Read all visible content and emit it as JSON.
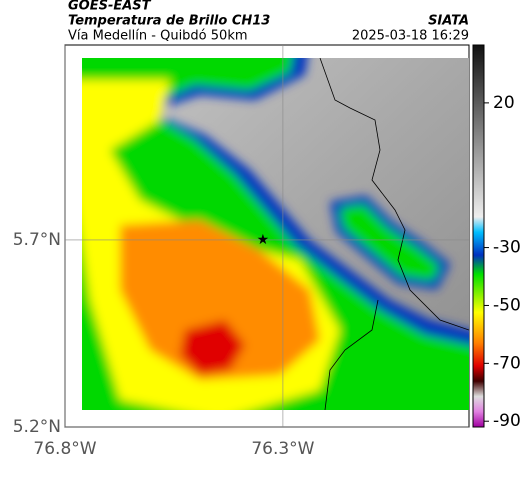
{
  "header": {
    "title": "GOES-EAST",
    "subtitle": "Temperatura de Brillo CH13",
    "route": "Vía Medellín - Quibdó 50km",
    "source": "SIATA",
    "datetime": "2025-03-18 16:29"
  },
  "map": {
    "xlim": [
      -76.8,
      -75.873
    ],
    "ylim": [
      5.2,
      6.221
    ],
    "xticks": [
      {
        "value": -76.8,
        "label": "76.8°W"
      },
      {
        "value": -76.3,
        "label": "76.3°W"
      }
    ],
    "yticks": [
      {
        "value": 5.7,
        "label": "5.7°N"
      },
      {
        "value": 5.2,
        "label": "5.2°N"
      }
    ],
    "grid": true,
    "marker": {
      "lon": -76.346,
      "lat": 5.7
    },
    "colorbar": {
      "lim": [
        40,
        -92
      ],
      "ticks": [
        20,
        -30,
        -50,
        -70,
        -90
      ]
    }
  }
}
